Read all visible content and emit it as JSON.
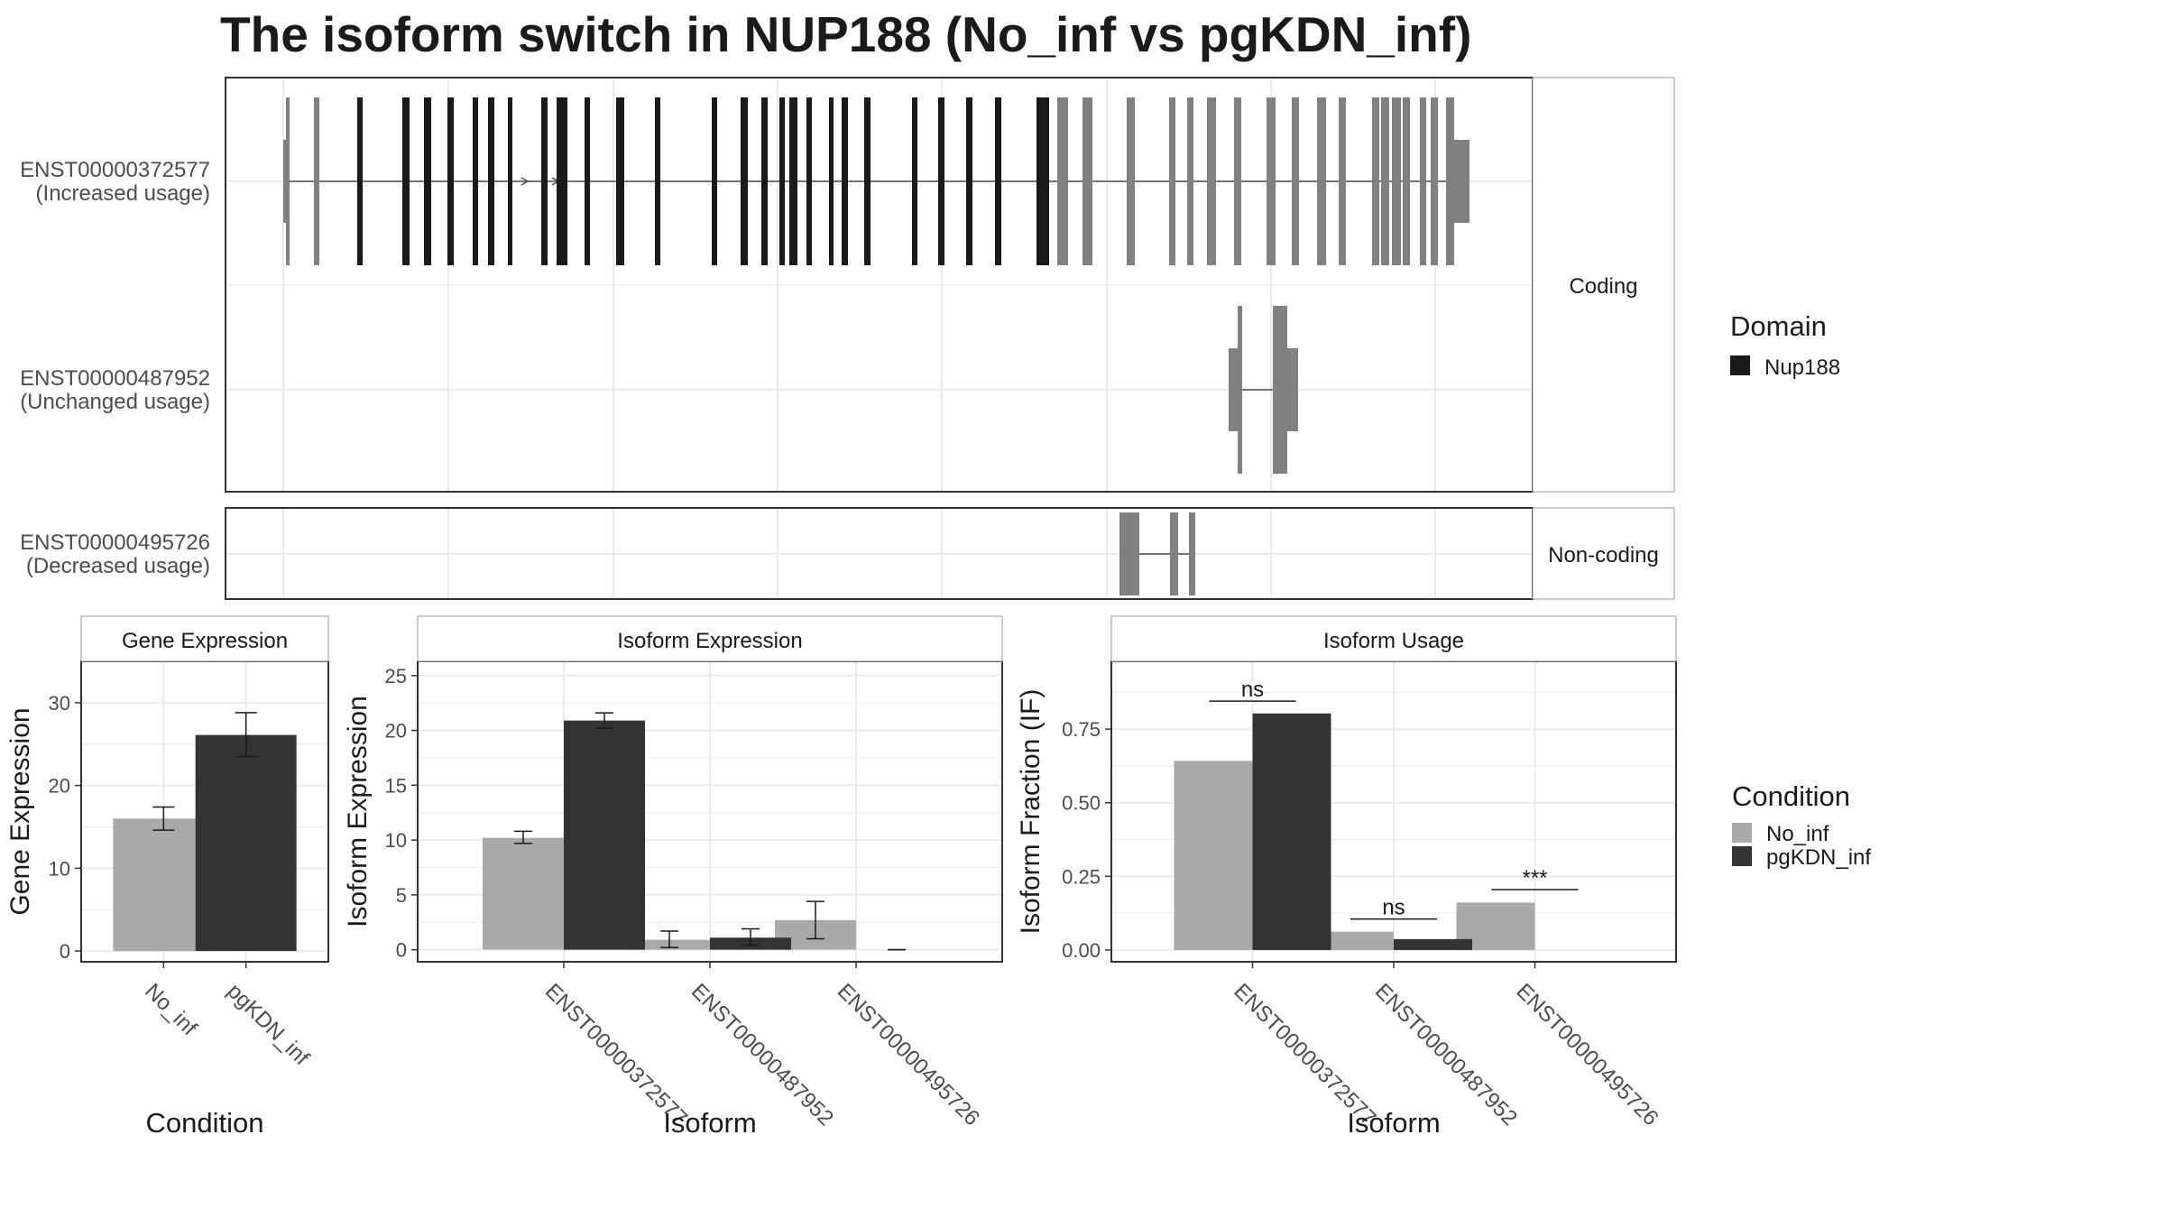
{
  "title": "The isoform switch in NUP188 (No_inf vs pgKDN_inf)",
  "colors": {
    "domain": "#1a1a1a",
    "exon": "#808080",
    "no_inf": "#a9a9a9",
    "pgkdn_inf": "#333333",
    "grid": "#ebebeb",
    "panel_border": "#333333",
    "strip_border": "#999999"
  },
  "structure": {
    "facets": [
      "Coding",
      "Non-coding"
    ],
    "isoforms": [
      {
        "id": "ENST00000372577",
        "usage": "(Increased usage)",
        "facet": "Coding"
      },
      {
        "id": "ENST00000487952",
        "usage": "(Unchanged usage)",
        "facet": "Coding"
      },
      {
        "id": "ENST00000495726",
        "usage": "(Decreased usage)",
        "facet": "Non-coding"
      }
    ]
  },
  "legend_domain": {
    "title": "Domain",
    "items": [
      "Nup188"
    ]
  },
  "legend_condition": {
    "title": "Condition",
    "items": [
      "No_inf",
      "pgKDN_inf"
    ]
  },
  "chart_data": [
    {
      "type": "bar",
      "title": "Gene Expression",
      "xlabel": "Condition",
      "ylabel": "Gene Expression",
      "categories": [
        "No_inf",
        "pgKDN_inf"
      ],
      "values": [
        16.0,
        26.1
      ],
      "error_low": [
        14.6,
        23.5
      ],
      "error_high": [
        17.4,
        28.8
      ],
      "ylim": [
        -1.3,
        35
      ],
      "yticks": [
        0,
        10,
        20,
        30
      ]
    },
    {
      "type": "bar",
      "title": "Isoform Expression",
      "xlabel": "Isoform",
      "ylabel": "Isoform Expression",
      "categories": [
        "ENST00000372577",
        "ENST00000487952",
        "ENST00000495726"
      ],
      "series": [
        {
          "name": "No_inf",
          "values": [
            10.2,
            0.9,
            2.7
          ],
          "error_low": [
            9.7,
            0.2,
            1.0
          ],
          "error_high": [
            10.8,
            1.7,
            4.4
          ]
        },
        {
          "name": "pgKDN_inf",
          "values": [
            20.9,
            1.1,
            0.0
          ],
          "error_low": [
            20.2,
            0.4,
            0.0
          ],
          "error_high": [
            21.6,
            1.9,
            0.0
          ]
        }
      ],
      "ylim": [
        -1.1,
        26.3
      ],
      "yticks": [
        0,
        5,
        10,
        15,
        20,
        25
      ]
    },
    {
      "type": "bar",
      "title": "Isoform Usage",
      "xlabel": "Isoform",
      "ylabel": "Isoform Fraction (IF)",
      "categories": [
        "ENST00000372577",
        "ENST00000487952",
        "ENST00000495726"
      ],
      "series": [
        {
          "name": "No_inf",
          "values": [
            0.642,
            0.062,
            0.161
          ]
        },
        {
          "name": "pgKDN_inf",
          "values": [
            0.803,
            0.037,
            0.0
          ]
        }
      ],
      "significance": [
        {
          "category": "ENST00000372577",
          "label": "ns",
          "y": 0.845
        },
        {
          "category": "ENST00000487952",
          "label": "ns",
          "y": 0.105
        },
        {
          "category": "ENST00000495726",
          "label": "***",
          "y": 0.205
        }
      ],
      "ylim": [
        -0.04,
        0.98
      ],
      "yticks": [
        0.0,
        0.25,
        0.5,
        0.75
      ],
      "ytick_labels": [
        "0.00",
        "0.25",
        "0.50",
        "0.75"
      ]
    }
  ]
}
